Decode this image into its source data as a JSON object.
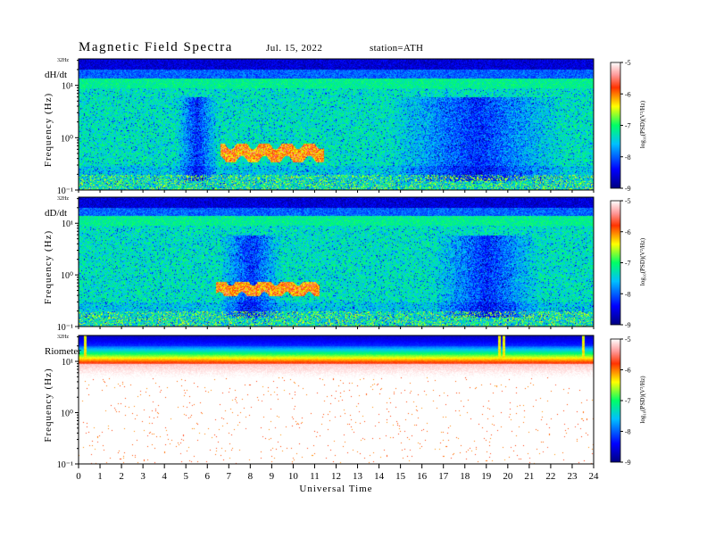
{
  "header": {
    "title": "Magnetic Field Spectra",
    "date": "Jul. 15, 2022",
    "station": "station=ATH"
  },
  "chart_data": [
    {
      "type": "heatmap",
      "panel_label": "dH/dt",
      "ylabel": "Frequency (Hz)",
      "y_scale": "log",
      "ylim": [
        0.1,
        32
      ],
      "y_ticks": [
        "10⁻¹",
        "10⁰",
        "10¹"
      ],
      "y_top_label": "32Hz",
      "colorbar_label": "log₁₀(PSD)(V²/Hz)",
      "colorbar_range": [
        -9,
        -5
      ],
      "colorbar_ticks": [
        "-5",
        "-6",
        "-7",
        "-8",
        "-9"
      ],
      "colorscale": [
        "#000080",
        "#0000ff",
        "#00bfff",
        "#00ff66",
        "#ffff00",
        "#ff3300",
        "#ffffff"
      ],
      "typical_log_psd": -7.5,
      "events": [
        {
          "start_hr": 6.6,
          "end_hr": 11.4,
          "freq_low_hz": 0.35,
          "freq_high_hz": 0.8,
          "log_psd": -6.0
        }
      ],
      "quiet_intervals_hr": [
        [
          4.5,
          6.5
        ],
        [
          14.5,
          22.5
        ]
      ]
    },
    {
      "type": "heatmap",
      "panel_label": "dD/dt",
      "ylabel": "Frequency (Hz)",
      "y_scale": "log",
      "ylim": [
        0.1,
        32
      ],
      "y_ticks": [
        "10⁻¹",
        "10⁰",
        "10¹"
      ],
      "y_top_label": "32Hz",
      "colorbar_label": "log₁₀(PSD)(V²/Hz)",
      "colorbar_range": [
        -9,
        -5
      ],
      "colorbar_ticks": [
        "-5",
        "-6",
        "-7",
        "-8",
        "-9"
      ],
      "colorscale": [
        "#000080",
        "#0000ff",
        "#00bfff",
        "#00ff66",
        "#ffff00",
        "#ff3300",
        "#ffffff"
      ],
      "typical_log_psd": -7.5,
      "events": [
        {
          "start_hr": 6.4,
          "end_hr": 11.2,
          "freq_low_hz": 0.4,
          "freq_high_hz": 0.75,
          "log_psd": -6.0
        }
      ],
      "quiet_intervals_hr": [
        [
          6.5,
          9.5
        ],
        [
          16.5,
          21.5
        ]
      ]
    },
    {
      "type": "heatmap",
      "panel_label": "Riometer",
      "ylabel": "Frequency (Hz)",
      "y_scale": "log",
      "ylim": [
        0.1,
        32
      ],
      "y_ticks": [
        "10⁻¹",
        "10⁰",
        "10¹"
      ],
      "y_top_label": "32Hz",
      "colorbar_label": "log₁₀(PSD)(V²/Hz)",
      "colorbar_range": [
        -9,
        -5
      ],
      "colorbar_ticks": [
        "-5",
        "-6",
        "-7",
        "-8",
        "-9"
      ],
      "colorscale": [
        "#000080",
        "#0000ff",
        "#00bfff",
        "#00ff66",
        "#ffff00",
        "#ff3300",
        "#ffffff"
      ],
      "xlabel": "Universal Time",
      "xlim": [
        0,
        24
      ],
      "x_ticks": [
        "0",
        "1",
        "2",
        "3",
        "4",
        "5",
        "6",
        "7",
        "8",
        "9",
        "10",
        "11",
        "12",
        "13",
        "14",
        "15",
        "16",
        "17",
        "18",
        "19",
        "20",
        "21",
        "22",
        "23",
        "24"
      ],
      "band_profile_log_psd": [
        {
          "freq_hz": 32,
          "log_psd": -8.6
        },
        {
          "freq_hz": 20,
          "log_psd": -8.0
        },
        {
          "freq_hz": 14,
          "log_psd": -7.0
        },
        {
          "freq_hz": 10,
          "log_psd": -6.0
        },
        {
          "freq_hz": 6,
          "log_psd": -5.2
        },
        {
          "freq_hz": 1,
          "log_psd": -4.5
        }
      ],
      "spike_times_hr": [
        0.3,
        19.6,
        19.8,
        23.5
      ]
    }
  ]
}
